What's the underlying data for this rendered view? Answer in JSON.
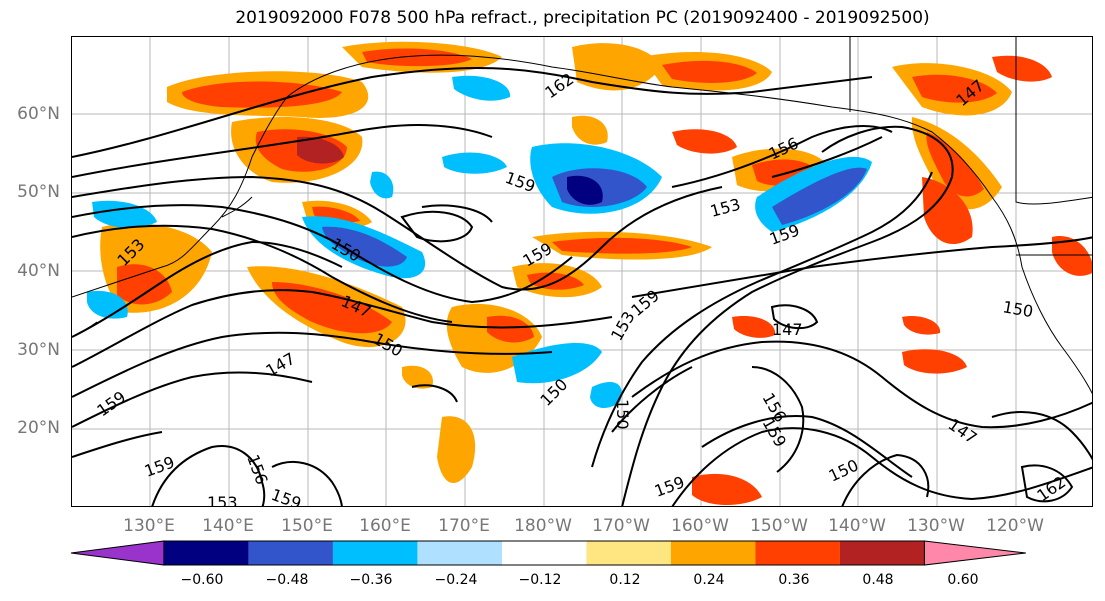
{
  "title": "2019092000 F078 500 hPa refract., precipitation PC (2019092400 - 2019092500)",
  "lat_labels": [
    "60°N",
    "50°N",
    "40°N",
    "30°N",
    "20°N"
  ],
  "lon_labels": [
    "130°E",
    "140°E",
    "150°E",
    "160°E",
    "170°E",
    "180°W",
    "170°W",
    "160°W",
    "150°W",
    "140°W",
    "130°W",
    "120°W"
  ],
  "contour_labels": [
    "162",
    "159",
    "156",
    "153",
    "159",
    "150",
    "159",
    "153",
    "147",
    "147",
    "150",
    "153",
    "159",
    "150",
    "159",
    "147",
    "156",
    "159",
    "150",
    "147",
    "156",
    "159",
    "150",
    "162",
    "159",
    "153",
    "159",
    "150",
    "147",
    "159"
  ],
  "colorbar": {
    "colors": [
      "#9933cc",
      "#000080",
      "#3355cc",
      "#00bfff",
      "#b0e0ff",
      "#ffffff",
      "#ffe680",
      "#ffa500",
      "#ff4000",
      "#b22222",
      "#ff88aa"
    ],
    "tick_labels": [
      "−0.60",
      "−0.48",
      "−0.36",
      "−0.24",
      "−0.12",
      "0.12",
      "0.24",
      "0.36",
      "0.48",
      "0.60"
    ]
  }
}
